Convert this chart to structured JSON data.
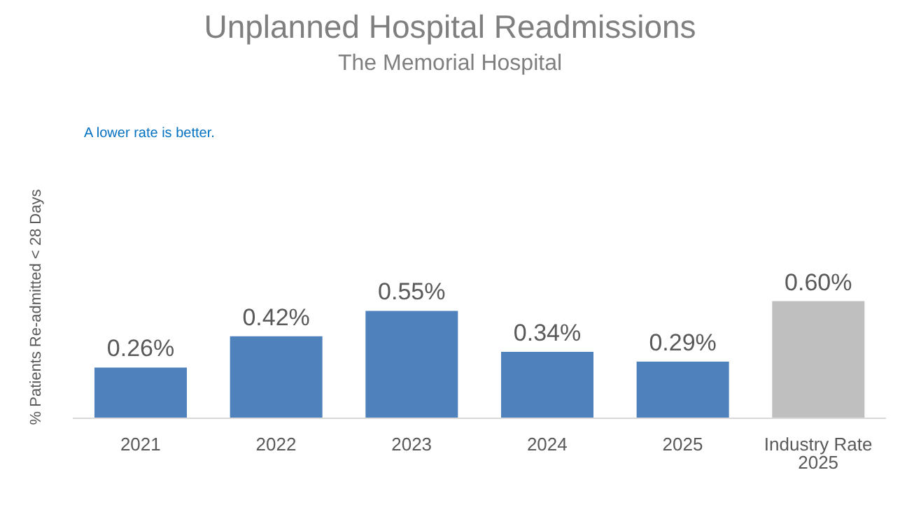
{
  "chart_data": {
    "type": "bar",
    "title": "Unplanned Hospital Readmissions",
    "subtitle": "The Memorial Hospital",
    "ylabel": "% Patients Re-admitted < 28 Days",
    "annotations": [
      "A lower rate is better."
    ],
    "categories": [
      "2021",
      "2022",
      "2023",
      "2024",
      "2025",
      "Industry Rate 2025"
    ],
    "values": [
      0.26,
      0.42,
      0.55,
      0.34,
      0.29,
      0.6
    ],
    "colors": [
      "#4f81bd",
      "#4f81bd",
      "#4f81bd",
      "#4f81bd",
      "#4f81bd",
      "#bfbfbf"
    ],
    "value_labels": [
      "0.26%",
      "0.42%",
      "0.55%",
      "0.34%",
      "0.29%",
      "0.60%"
    ],
    "grid": false,
    "legend": false
  }
}
